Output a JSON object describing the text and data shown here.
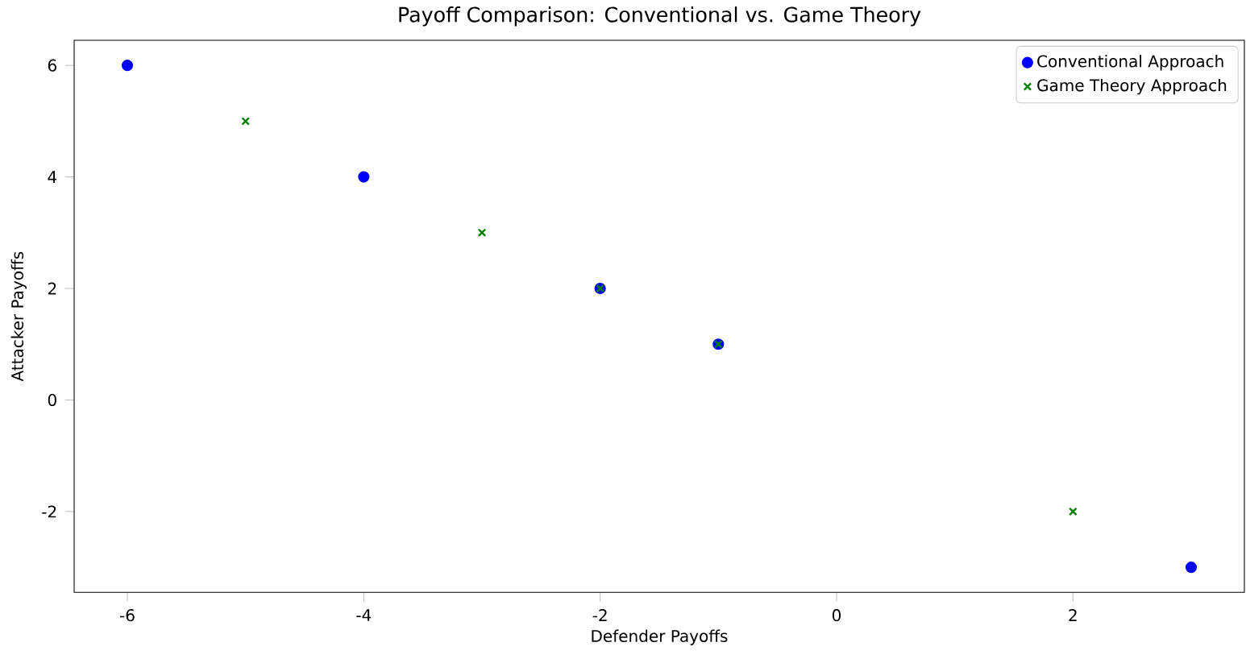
{
  "chart_data": {
    "type": "scatter",
    "title": "Payoff Comparison: Conventional vs. Game Theory",
    "xlabel": "Defender Payoffs",
    "ylabel": "Attacker Payoffs",
    "xlim": [
      -6.45,
      3.45
    ],
    "ylim": [
      -3.45,
      6.45
    ],
    "xticks": [
      -6,
      -4,
      -2,
      0,
      2
    ],
    "yticks": [
      -2,
      0,
      2,
      4,
      6
    ],
    "legend": "top right",
    "grid": false,
    "series": [
      {
        "name": "Conventional Approach",
        "color": "#0000ff",
        "marker": "circle",
        "x": [
          -6,
          -4,
          -2,
          -1,
          3
        ],
        "values": [
          6,
          4,
          2,
          1,
          -3
        ]
      },
      {
        "name": "Game Theory Approach",
        "color": "#008000",
        "marker": "cross",
        "x": [
          -5,
          -3,
          -2,
          -1,
          2
        ],
        "values": [
          5,
          3,
          2,
          1,
          -2
        ]
      }
    ]
  }
}
